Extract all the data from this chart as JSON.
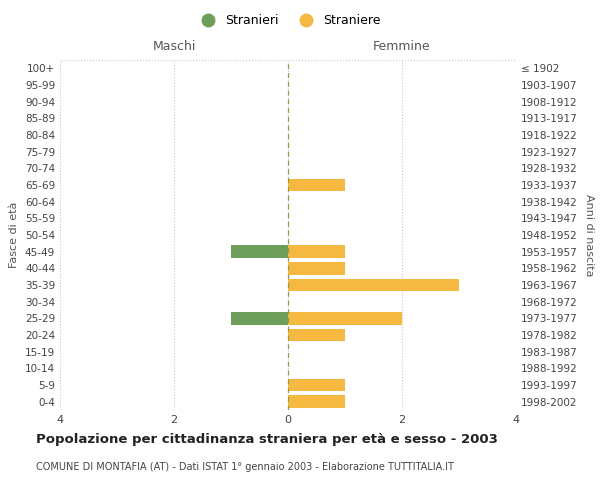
{
  "age_groups": [
    "100+",
    "95-99",
    "90-94",
    "85-89",
    "80-84",
    "75-79",
    "70-74",
    "65-69",
    "60-64",
    "55-59",
    "50-54",
    "45-49",
    "40-44",
    "35-39",
    "30-34",
    "25-29",
    "20-24",
    "15-19",
    "10-14",
    "5-9",
    "0-4"
  ],
  "birth_years": [
    "≤ 1902",
    "1903-1907",
    "1908-1912",
    "1913-1917",
    "1918-1922",
    "1923-1927",
    "1928-1932",
    "1933-1937",
    "1938-1942",
    "1943-1947",
    "1948-1952",
    "1953-1957",
    "1958-1962",
    "1963-1967",
    "1968-1972",
    "1973-1977",
    "1978-1982",
    "1983-1987",
    "1988-1992",
    "1993-1997",
    "1998-2002"
  ],
  "males": [
    0,
    0,
    0,
    0,
    0,
    0,
    0,
    0,
    0,
    0,
    0,
    1,
    0,
    0,
    0,
    1,
    0,
    0,
    0,
    0,
    0
  ],
  "females": [
    0,
    0,
    0,
    0,
    0,
    0,
    0,
    1,
    0,
    0,
    0,
    1,
    1,
    3,
    0,
    2,
    1,
    0,
    0,
    1,
    1
  ],
  "male_color": "#6d9e5a",
  "female_color": "#f5b942",
  "grid_color": "#c8c8c8",
  "center_line_color": "#9a9a40",
  "background_color": "#ffffff",
  "title": "Popolazione per cittadinanza straniera per età e sesso - 2003",
  "subtitle": "COMUNE DI MONTAFIA (AT) - Dati ISTAT 1° gennaio 2003 - Elaborazione TUTTITALIA.IT",
  "xlabel_left": "Maschi",
  "xlabel_right": "Femmine",
  "ylabel_left": "Fasce di età",
  "ylabel_right": "Anni di nascita",
  "legend_male": "Stranieri",
  "legend_female": "Straniere",
  "xlim": 4,
  "bar_height": 0.75
}
